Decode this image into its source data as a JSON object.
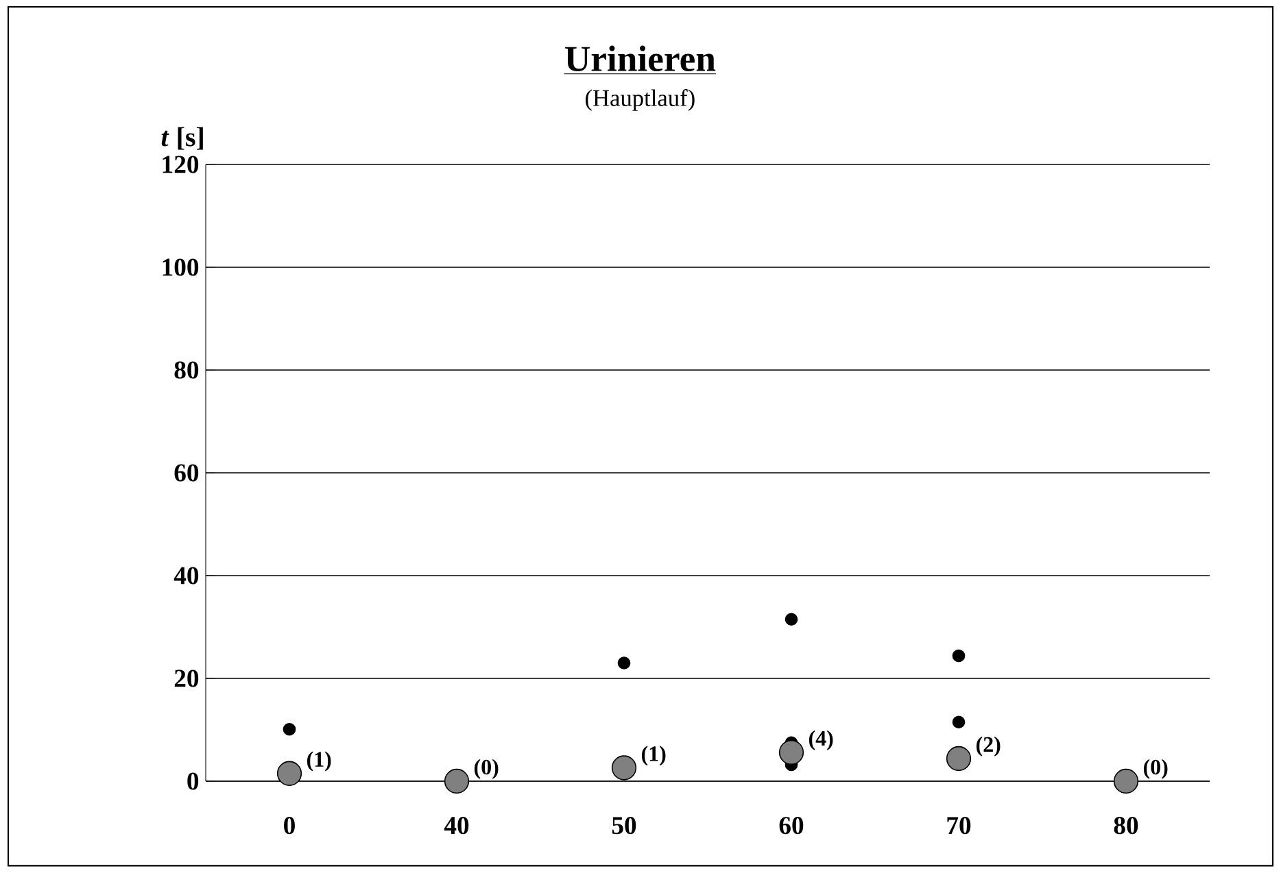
{
  "chart_data": {
    "type": "scatter",
    "title": "Urinieren",
    "subtitle": "(Hauptlauf)",
    "ylabel": "*t* [s]",
    "categories": [
      "0",
      "40",
      "50",
      "60",
      "70",
      "80"
    ],
    "ylim": [
      0,
      120
    ],
    "yticks": [
      0,
      20,
      40,
      60,
      80,
      100,
      120
    ],
    "grid": "y",
    "marker": "circle",
    "series": [
      {
        "color": "#000000",
        "x": [
          "0",
          "50",
          "60",
          "60",
          "60",
          "70",
          "70"
        ],
        "values": [
          10.1,
          23,
          31.5,
          7.5,
          3.2,
          24.4,
          11.5
        ]
      },
      {
        "color": "#808080",
        "x": [
          "0",
          "40",
          "50",
          "60",
          "70",
          "80"
        ],
        "values": [
          1.5,
          0,
          2.6,
          5.6,
          4.4,
          0
        ]
      }
    ],
    "annotations": [
      {
        "text": "(1)",
        "x": "0",
        "y": 1.5
      },
      {
        "text": "(0)",
        "x": "40",
        "y": 0
      },
      {
        "text": "(1)",
        "x": "50",
        "y": 2.6
      },
      {
        "text": "(4)",
        "x": "60",
        "y": 5.6
      },
      {
        "text": "(2)",
        "x": "70",
        "y": 4.4
      },
      {
        "text": "(0)",
        "x": "80",
        "y": 0
      }
    ]
  }
}
